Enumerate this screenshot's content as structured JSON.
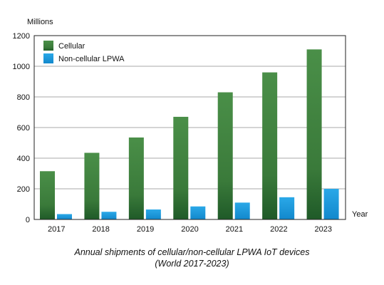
{
  "chart_data": {
    "type": "bar",
    "title_line1": "Annual shipments of cellular/non-cellular LPWA IoT devices",
    "title_line2": "(World 2017-2023)",
    "ylabel": "Millions",
    "xlabel": "Year",
    "ylim": [
      0,
      1200
    ],
    "yticks": [
      0,
      200,
      400,
      600,
      800,
      1000,
      1200
    ],
    "categories": [
      "2017",
      "2018",
      "2019",
      "2020",
      "2021",
      "2022",
      "2023"
    ],
    "series": [
      {
        "name": "Cellular",
        "color": "#3c7e3c",
        "values": [
          315,
          435,
          535,
          670,
          830,
          960,
          1110
        ]
      },
      {
        "name": "Non-cellular LPWA",
        "color": "#1a9ede",
        "values": [
          35,
          50,
          65,
          85,
          110,
          145,
          200
        ]
      }
    ],
    "grid": true,
    "legend": "top-left"
  }
}
